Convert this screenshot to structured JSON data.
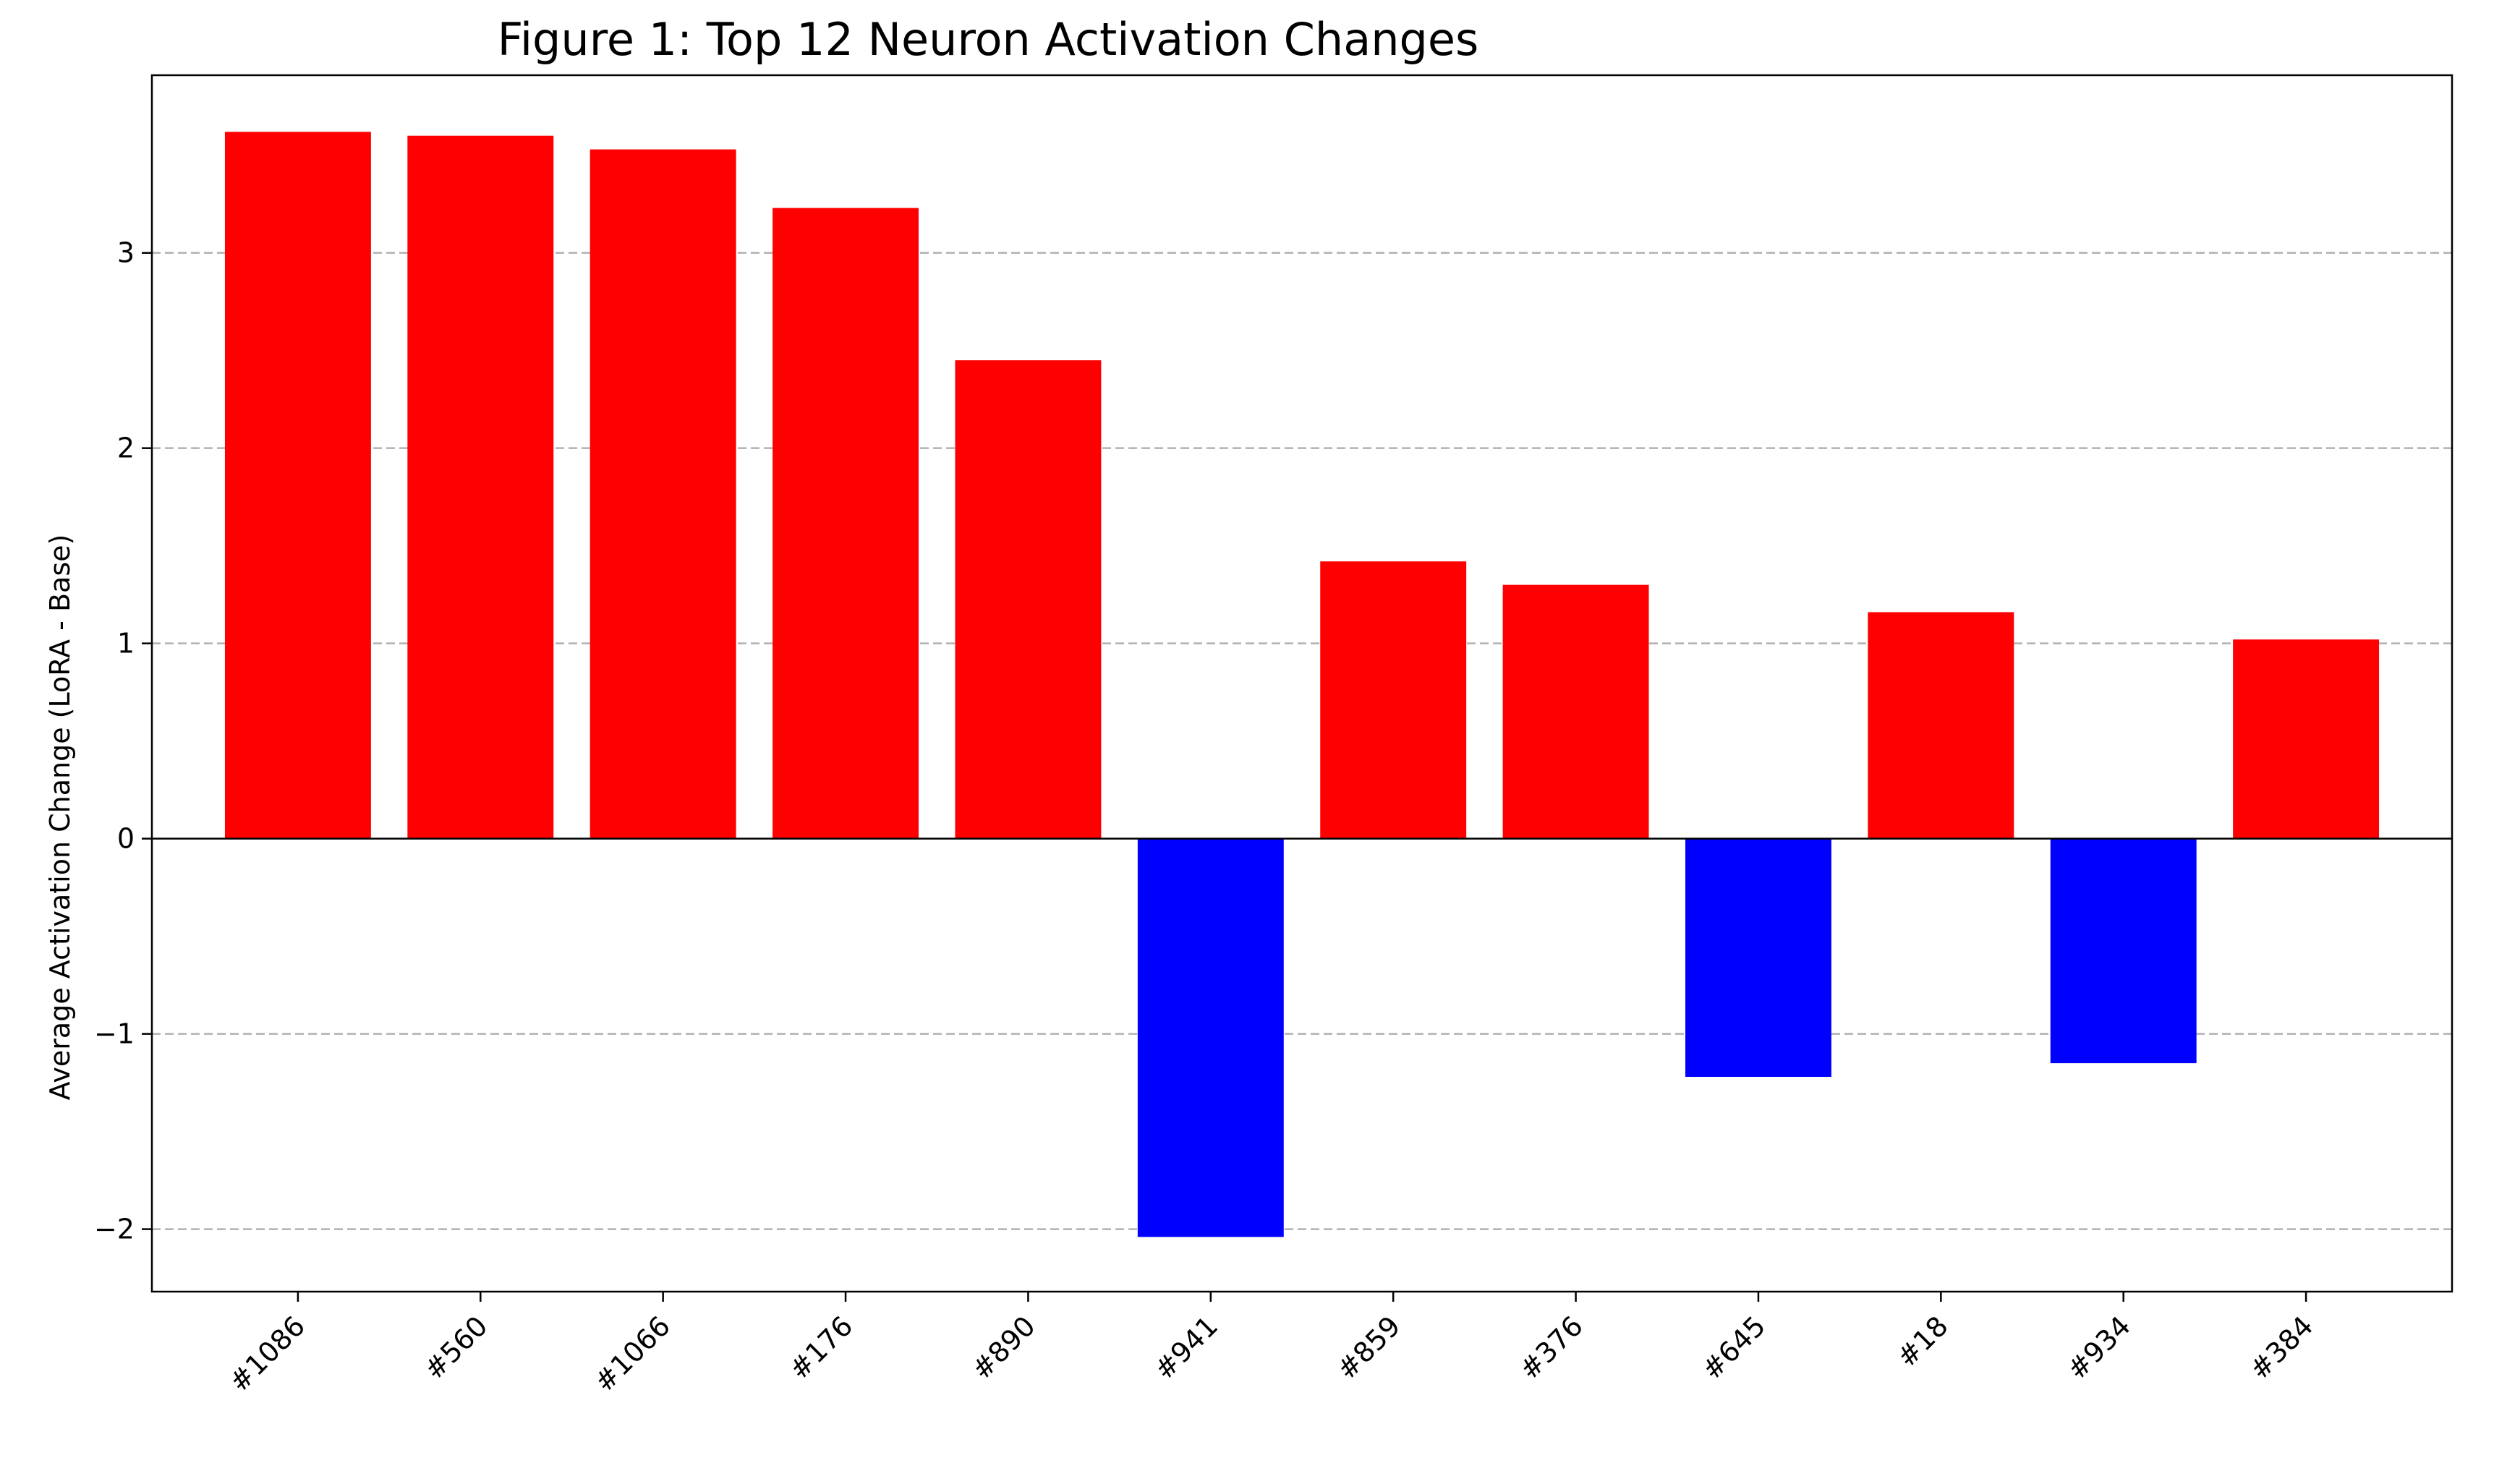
{
  "chart_data": {
    "type": "bar",
    "title": "Figure 1: Top 12 Neuron Activation Changes",
    "xlabel": "",
    "ylabel": "Average Activation Change (LoRA - Base)",
    "categories": [
      "#1086",
      "#560",
      "#1066",
      "#176",
      "#890",
      "#941",
      "#859",
      "#376",
      "#645",
      "#18",
      "#934",
      "#384"
    ],
    "values": [
      3.62,
      3.6,
      3.53,
      3.23,
      2.45,
      -2.04,
      1.42,
      1.3,
      -1.22,
      1.16,
      -1.15,
      1.02
    ],
    "ylim": [
      -2.32,
      3.91
    ],
    "yticks": [
      -2,
      -1,
      0,
      1,
      2,
      3
    ],
    "ytick_labels": [
      "−2",
      "−1",
      "0",
      "1",
      "2",
      "3"
    ],
    "grid": "y, dashed",
    "colors": {
      "positive": "#ff0000",
      "negative": "#0000ff"
    }
  }
}
